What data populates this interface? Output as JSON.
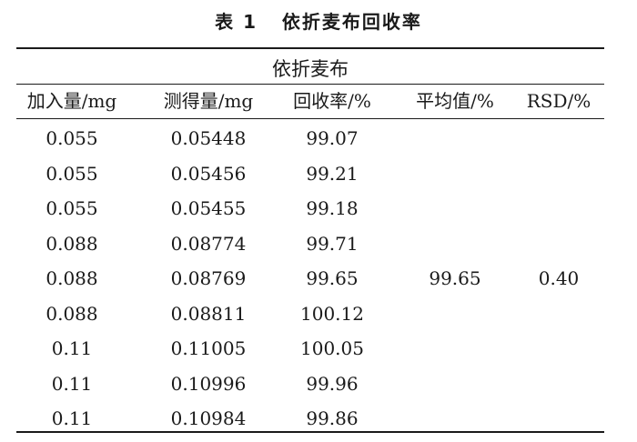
{
  "caption": "表 1   依折麦布回收率",
  "group_title": "依折麦布",
  "headers": [
    "加入量/mg",
    "测得量/mg",
    "回收率/%",
    "平均值/%",
    "RSD/%"
  ],
  "rows": [
    [
      "0.055",
      "0.05448",
      "99.07"
    ],
    [
      "0.055",
      "0.05456",
      "99.21"
    ],
    [
      "0.055",
      "0.05455",
      "99.18"
    ],
    [
      "0.088",
      "0.08774",
      "99.71"
    ],
    [
      "0.088",
      "0.08769",
      "99.65"
    ],
    [
      "0.088",
      "0.08811",
      "100.12"
    ],
    [
      "0.11",
      "0.11005",
      "100.05"
    ],
    [
      "0.11",
      "0.10996",
      "99.96"
    ],
    [
      "0.11",
      "0.10984",
      "99.86"
    ]
  ],
  "summary": {
    "average": "99.65",
    "rsd": "0.40"
  }
}
